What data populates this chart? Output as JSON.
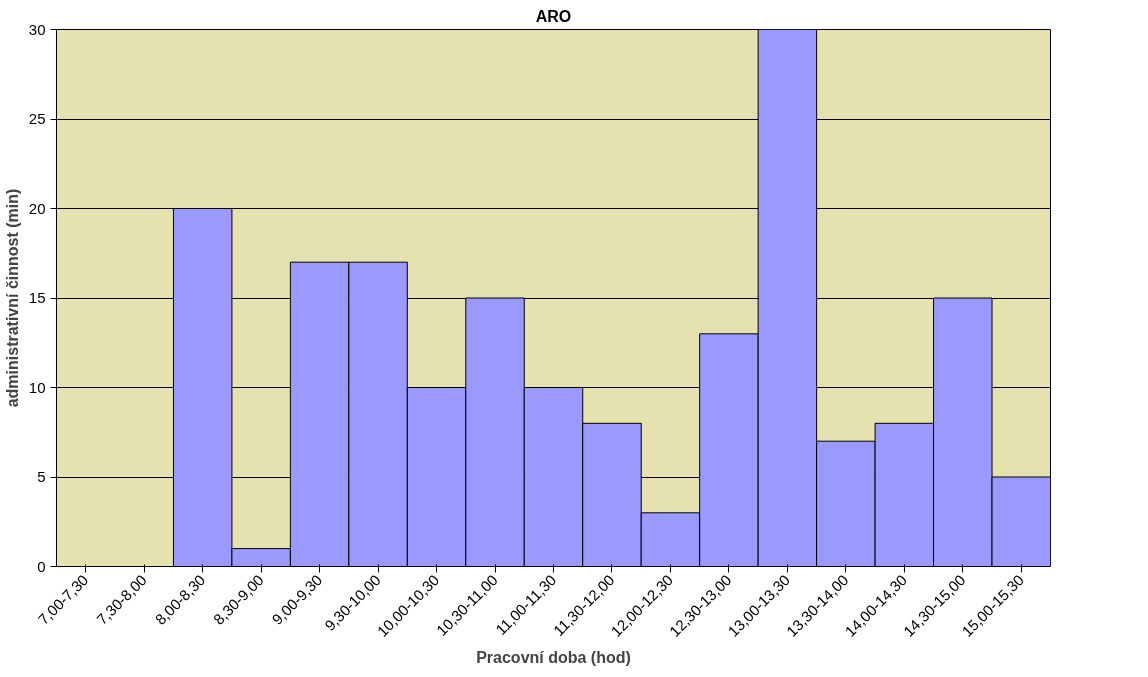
{
  "chart_data": {
    "type": "bar",
    "title": "ARO",
    "xlabel": "Pracovní doba (hod)",
    "ylabel": "administrativní činnost (min)",
    "categories": [
      "7,00-7,30",
      "7,30-8,00",
      "8,00-8,30",
      "8,30-9,00",
      "9,00-9,30",
      "9,30-10,00",
      "10,00-10,30",
      "10,30-11,00",
      "11,00-11,30",
      "11,30-12,00",
      "12,00-12,30",
      "12,30-13,00",
      "13,00-13,30",
      "13,30-14,00",
      "14,00-14,30",
      "14,30-15,00",
      "15,00-15,30"
    ],
    "values": [
      0,
      0,
      20,
      1,
      17,
      17,
      10,
      15,
      10,
      8,
      3,
      13,
      30,
      7,
      8,
      15,
      5
    ],
    "color": "#9999ff",
    "ylim": [
      0,
      30
    ],
    "yticks": [
      0,
      5,
      10,
      15,
      20,
      25,
      30
    ],
    "grid": "y"
  }
}
